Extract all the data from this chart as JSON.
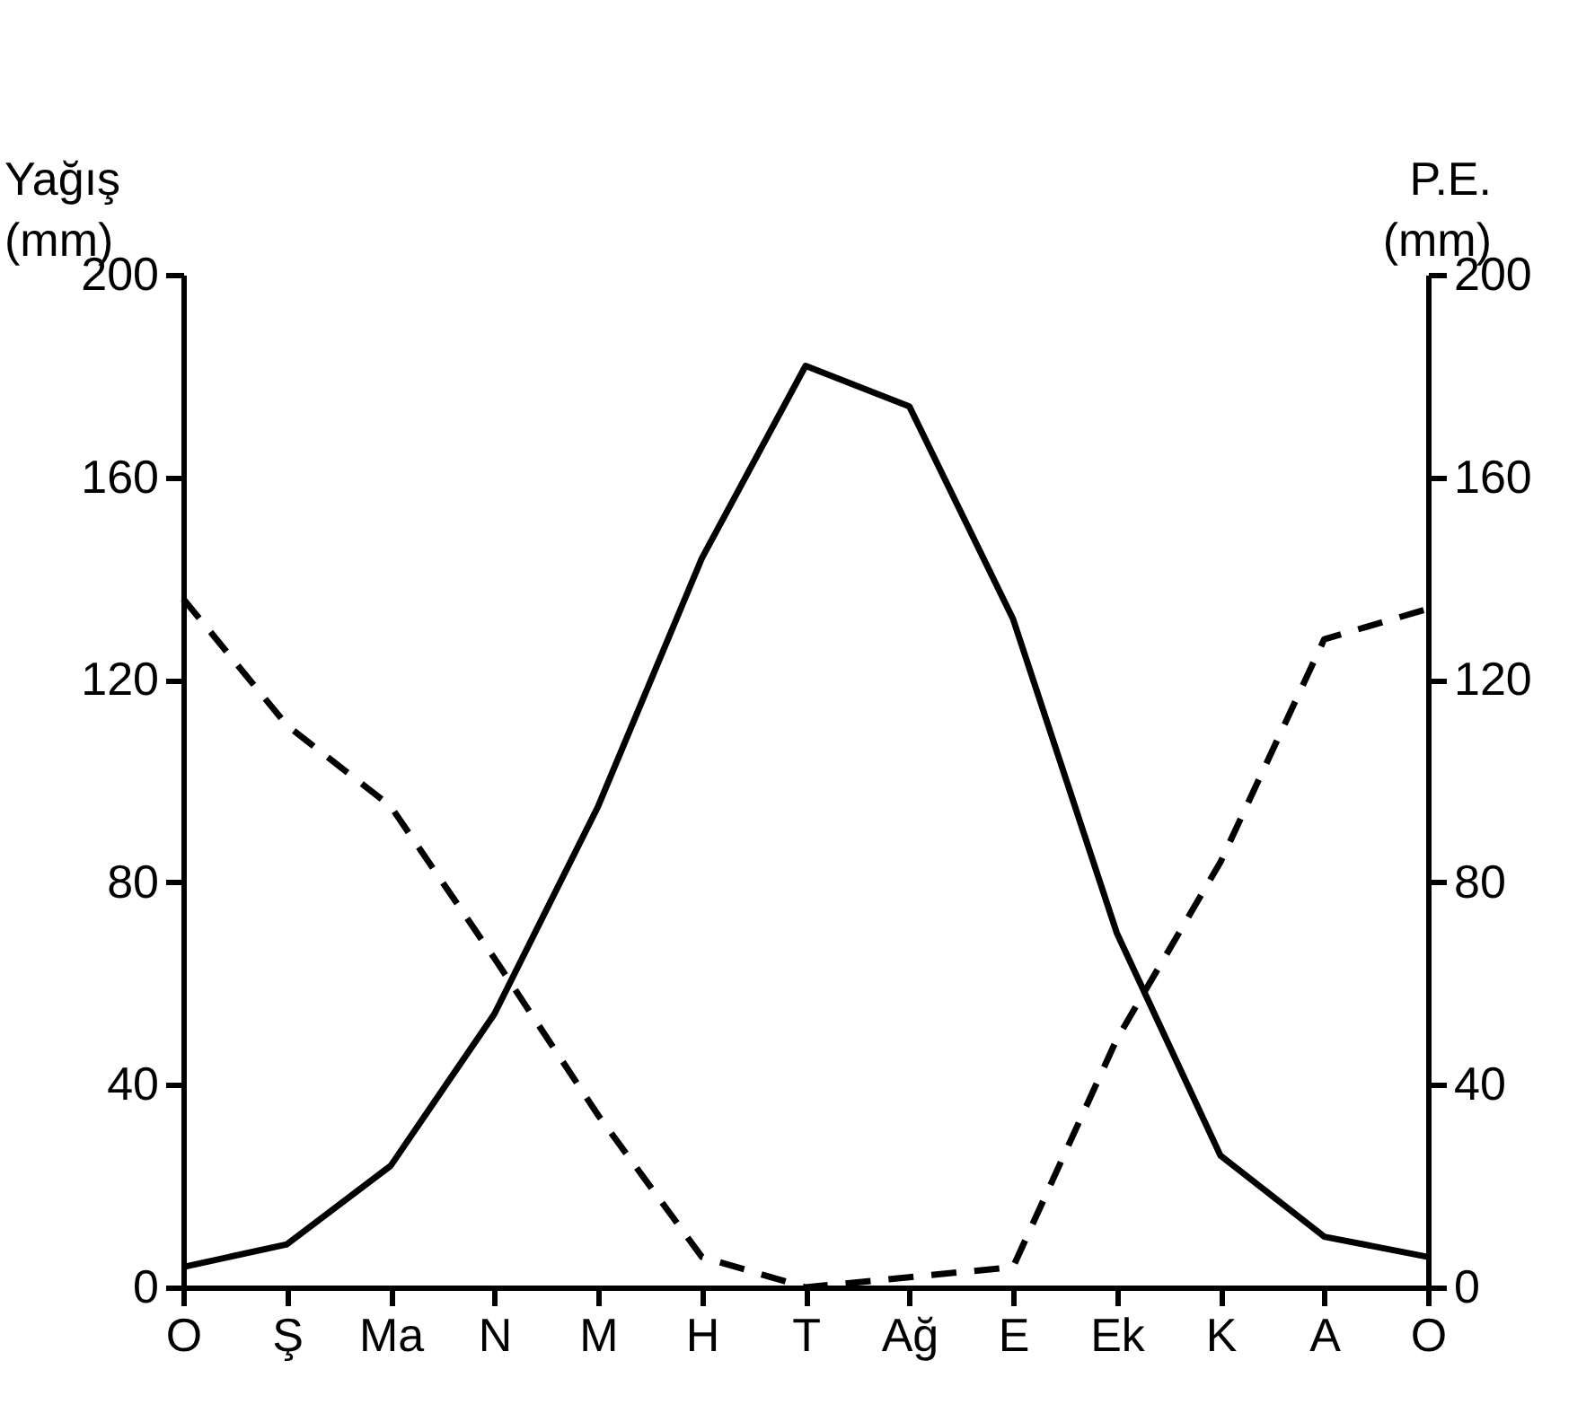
{
  "chart_data": {
    "type": "line",
    "categories": [
      "O",
      "Ş",
      "Ma",
      "N",
      "M",
      "H",
      "T",
      "Ağ",
      "E",
      "Ek",
      "K",
      "A",
      "O"
    ],
    "ylabel": "Yağış (mm)",
    "y2label": "P.E. (mm)",
    "ylim": [
      0,
      200
    ],
    "yticks": [
      0,
      40,
      80,
      120,
      160,
      200
    ],
    "y2lim": [
      0,
      200
    ],
    "y2ticks": [
      0,
      40,
      80,
      120,
      160,
      200
    ],
    "grid": false,
    "marker": "none",
    "series": [
      {
        "color": "#000000",
        "line_style": "dashed",
        "values": [
          136,
          111,
          95,
          65,
          34,
          6,
          0,
          2,
          4,
          49,
          84,
          128,
          134
        ]
      },
      {
        "color": "#000000",
        "line_style": "solid",
        "axis": "y2",
        "values": [
          4,
          8.5,
          24,
          54,
          95,
          144,
          182,
          174,
          132,
          70,
          26,
          10,
          6
        ]
      }
    ]
  }
}
